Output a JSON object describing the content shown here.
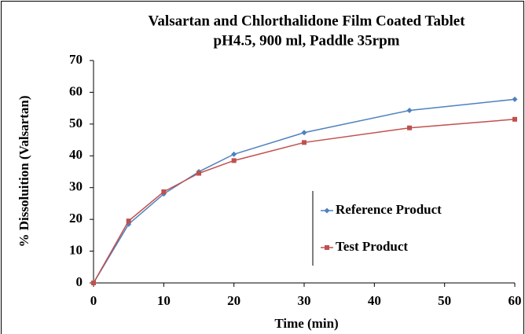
{
  "chart_data": {
    "type": "line",
    "title": "Valsartan and Chlorthalidone Film Coated Tablet",
    "subtitle": "pH4.5, 900 ml, Paddle 35rpm",
    "x_label": "Time (min)",
    "y_label": "% Dissoluition (Valsartan)",
    "x": [
      0,
      5,
      10,
      15,
      20,
      30,
      45,
      60
    ],
    "series": [
      {
        "name": "Reference Product",
        "color": "#4f81bd",
        "marker": "diamond",
        "values": [
          0,
          18.5,
          28,
          35,
          40.5,
          47.3,
          54.3,
          57.8
        ]
      },
      {
        "name": "Test Product",
        "color": "#c0504d",
        "marker": "square",
        "values": [
          0,
          19.5,
          28.7,
          34.5,
          38.5,
          44.2,
          48.8,
          51.5
        ]
      }
    ],
    "xlim": [
      0,
      60
    ],
    "xticks": [
      0,
      10,
      20,
      30,
      40,
      50,
      60
    ],
    "ylim": [
      0,
      70
    ],
    "yticks": [
      0,
      10,
      20,
      30,
      40,
      50,
      60,
      70
    ],
    "grid": false,
    "legend": "right"
  }
}
